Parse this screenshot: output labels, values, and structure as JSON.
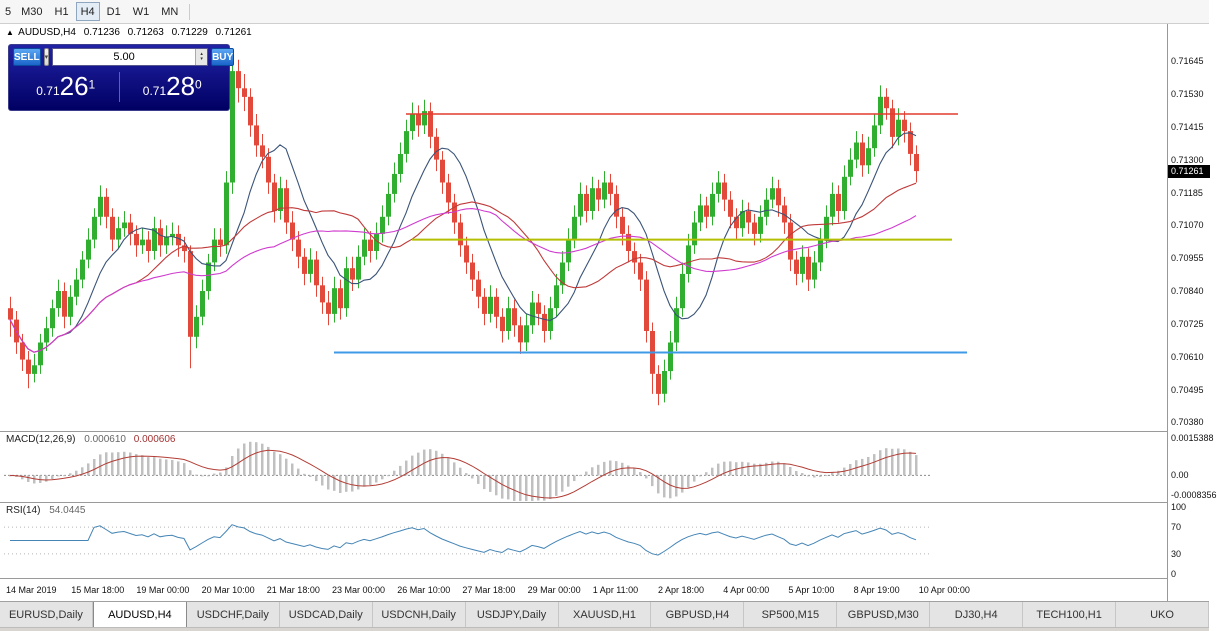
{
  "toolbar": {
    "timeframes": [
      "5",
      "M30",
      "H1",
      "H4",
      "D1",
      "W1",
      "MN"
    ],
    "active": "H4"
  },
  "chart_header": {
    "symbol": "AUDUSD,H4",
    "open": "0.71236",
    "high": "0.71263",
    "low": "0.71229",
    "close": "0.71261"
  },
  "trade_panel": {
    "sell_label": "SELL",
    "buy_label": "BUY",
    "volume": "5.00",
    "sell_price_small": "0.71",
    "sell_price_big": "26",
    "sell_price_sup": "1",
    "buy_price_small": "0.71",
    "buy_price_big": "28",
    "buy_price_sup": "0"
  },
  "price_axis": {
    "ticks": [
      "0.71645",
      "0.71530",
      "0.71415",
      "0.71300",
      "0.71185",
      "0.71070",
      "0.70955",
      "0.70840",
      "0.70725",
      "0.70610",
      "0.70495",
      "0.70380"
    ],
    "current_price": "0.71261"
  },
  "indicators": {
    "macd": {
      "label": "MACD(12,26,9)",
      "value_main": "0.000610",
      "value_signal": "0.000606",
      "axis": [
        "0.0015388",
        "0.00",
        "-0.0008356"
      ],
      "fast": 12,
      "slow": 26,
      "signal": 9
    },
    "rsi": {
      "label": "RSI(14)",
      "value": "54.0445",
      "axis": [
        "100",
        "70",
        "30",
        "0"
      ],
      "period": 14,
      "levels": [
        70,
        30
      ]
    }
  },
  "tabs": {
    "active": "AUDUSD,H4",
    "items": [
      "EURUSD,Daily",
      "AUDUSD,H4",
      "USDCHF,Daily",
      "USDCAD,Daily",
      "USDCNH,Daily",
      "USDJPY,Daily",
      "XAUUSD,H1",
      "GBPUSD,H4",
      "SP500,M15",
      "GBPUSD,M30",
      "DJ30,H4",
      "TECH100,H1",
      "UKO"
    ]
  },
  "chart_data": {
    "type": "candlestick",
    "title": "AUDUSD,H4",
    "ylim": [
      0.7035,
      0.71775
    ],
    "x_labels": [
      "14 Mar 2019",
      "15 Mar 18:00",
      "19 Mar 00:00",
      "20 Mar 10:00",
      "21 Mar 18:00",
      "23 Mar 00:00",
      "26 Mar 10:00",
      "27 Mar 18:00",
      "29 Mar 00:00",
      "1 Apr 11:00",
      "2 Apr 18:00",
      "4 Apr 00:00",
      "5 Apr 10:00",
      "8 Apr 19:00",
      "10 Apr 00:00"
    ],
    "colors": {
      "up": "#2fae2f",
      "down": "#e2493b",
      "ma_fast": "#3a5378",
      "ma_mid": "#c03a3a",
      "ma_slow": "#cf3ccf",
      "macd_hist": "#c0c0c0",
      "macd_signal": "#b23d35",
      "rsi": "#4585b5",
      "hline_red": "#e23b2e",
      "hline_yellow": "#b3bf00",
      "hline_blue": "#3e9ae6"
    },
    "moving_averages": [
      {
        "period": 10,
        "color_key": "ma_fast"
      },
      {
        "period": 22,
        "color_key": "ma_mid"
      },
      {
        "period": 45,
        "color_key": "ma_slow"
      }
    ],
    "hlines": [
      {
        "price": 0.7146,
        "color_key": "hline_red",
        "from_bar": 66,
        "to_bar": 158,
        "width": 1.5
      },
      {
        "price": 0.7102,
        "color_key": "hline_yellow",
        "from_bar": 67,
        "to_bar": 157,
        "width": 2
      },
      {
        "price": 0.70625,
        "color_key": "hline_blue",
        "from_bar": 54,
        "to_bar": 159.5,
        "width": 2
      }
    ],
    "candles": [
      [
        0.7078,
        0.7082,
        0.7068,
        0.7074
      ],
      [
        0.7074,
        0.7077,
        0.7062,
        0.7066
      ],
      [
        0.7066,
        0.7069,
        0.7056,
        0.706
      ],
      [
        0.706,
        0.7063,
        0.705,
        0.7055
      ],
      [
        0.7055,
        0.7062,
        0.7052,
        0.7058
      ],
      [
        0.7058,
        0.7069,
        0.7055,
        0.7066
      ],
      [
        0.7066,
        0.7075,
        0.7063,
        0.7071
      ],
      [
        0.7071,
        0.7081,
        0.7068,
        0.7078
      ],
      [
        0.7078,
        0.7088,
        0.7075,
        0.7084
      ],
      [
        0.7084,
        0.7087,
        0.7071,
        0.7075
      ],
      [
        0.7075,
        0.7086,
        0.7072,
        0.7082
      ],
      [
        0.7082,
        0.7092,
        0.7079,
        0.7088
      ],
      [
        0.7088,
        0.7098,
        0.7085,
        0.7095
      ],
      [
        0.7095,
        0.7106,
        0.7092,
        0.7102
      ],
      [
        0.7102,
        0.7113,
        0.7099,
        0.711
      ],
      [
        0.711,
        0.7121,
        0.7107,
        0.7117
      ],
      [
        0.7117,
        0.712,
        0.7106,
        0.711
      ],
      [
        0.711,
        0.7113,
        0.7098,
        0.7102
      ],
      [
        0.7102,
        0.711,
        0.7099,
        0.7106
      ],
      [
        0.7106,
        0.7112,
        0.7103,
        0.7108
      ],
      [
        0.7108,
        0.7111,
        0.71,
        0.7104
      ],
      [
        0.7104,
        0.7107,
        0.7096,
        0.71
      ],
      [
        0.71,
        0.7106,
        0.7097,
        0.7102
      ],
      [
        0.7102,
        0.7105,
        0.7094,
        0.7098
      ],
      [
        0.7098,
        0.711,
        0.7095,
        0.7106
      ],
      [
        0.7106,
        0.7109,
        0.7096,
        0.71
      ],
      [
        0.71,
        0.7107,
        0.7097,
        0.7103
      ],
      [
        0.7103,
        0.7108,
        0.71,
        0.7104
      ],
      [
        0.7104,
        0.7107,
        0.7096,
        0.71
      ],
      [
        0.71,
        0.7103,
        0.7094,
        0.7098
      ],
      [
        0.7098,
        0.71,
        0.7057,
        0.7068
      ],
      [
        0.7068,
        0.7079,
        0.7064,
        0.7075
      ],
      [
        0.7075,
        0.7088,
        0.7072,
        0.7084
      ],
      [
        0.7084,
        0.7097,
        0.7081,
        0.7094
      ],
      [
        0.7094,
        0.7106,
        0.7091,
        0.7102
      ],
      [
        0.7102,
        0.7106,
        0.7096,
        0.71
      ],
      [
        0.71,
        0.7126,
        0.7097,
        0.7122
      ],
      [
        0.7122,
        0.7168,
        0.7118,
        0.7161
      ],
      [
        0.7161,
        0.7165,
        0.715,
        0.7155
      ],
      [
        0.7155,
        0.716,
        0.7147,
        0.7152
      ],
      [
        0.7152,
        0.7155,
        0.7138,
        0.7142
      ],
      [
        0.7142,
        0.7146,
        0.7131,
        0.7135
      ],
      [
        0.7135,
        0.7139,
        0.7127,
        0.7131
      ],
      [
        0.7131,
        0.7134,
        0.7118,
        0.7122
      ],
      [
        0.7122,
        0.7125,
        0.7108,
        0.7112
      ],
      [
        0.7112,
        0.7124,
        0.7109,
        0.712
      ],
      [
        0.712,
        0.7123,
        0.7104,
        0.7108
      ],
      [
        0.7108,
        0.7112,
        0.7098,
        0.7102
      ],
      [
        0.7102,
        0.7105,
        0.7092,
        0.7096
      ],
      [
        0.7096,
        0.7099,
        0.7086,
        0.709
      ],
      [
        0.709,
        0.7099,
        0.7087,
        0.7095
      ],
      [
        0.7095,
        0.7098,
        0.7082,
        0.7086
      ],
      [
        0.7086,
        0.7089,
        0.7076,
        0.708
      ],
      [
        0.708,
        0.7084,
        0.7072,
        0.7076
      ],
      [
        0.7076,
        0.7089,
        0.7073,
        0.7085
      ],
      [
        0.7085,
        0.7088,
        0.7074,
        0.7078
      ],
      [
        0.7078,
        0.7096,
        0.7075,
        0.7092
      ],
      [
        0.7092,
        0.7096,
        0.7084,
        0.7088
      ],
      [
        0.7088,
        0.71,
        0.7085,
        0.7096
      ],
      [
        0.7096,
        0.7106,
        0.7093,
        0.7102
      ],
      [
        0.7102,
        0.7105,
        0.7094,
        0.7098
      ],
      [
        0.7098,
        0.7108,
        0.7095,
        0.7104
      ],
      [
        0.7104,
        0.7114,
        0.7101,
        0.711
      ],
      [
        0.711,
        0.7122,
        0.7107,
        0.7118
      ],
      [
        0.7118,
        0.7129,
        0.7115,
        0.7125
      ],
      [
        0.7125,
        0.7136,
        0.7122,
        0.7132
      ],
      [
        0.7132,
        0.7144,
        0.7129,
        0.714
      ],
      [
        0.714,
        0.715,
        0.7137,
        0.7146
      ],
      [
        0.7146,
        0.7149,
        0.7138,
        0.7142
      ],
      [
        0.7142,
        0.7151,
        0.7139,
        0.7147
      ],
      [
        0.7147,
        0.715,
        0.7134,
        0.7138
      ],
      [
        0.7138,
        0.7141,
        0.7126,
        0.713
      ],
      [
        0.713,
        0.7133,
        0.7118,
        0.7122
      ],
      [
        0.7122,
        0.7125,
        0.7111,
        0.7115
      ],
      [
        0.7115,
        0.7118,
        0.7104,
        0.7108
      ],
      [
        0.7108,
        0.7111,
        0.7096,
        0.71
      ],
      [
        0.71,
        0.7103,
        0.709,
        0.7094
      ],
      [
        0.7094,
        0.7097,
        0.7084,
        0.7088
      ],
      [
        0.7088,
        0.7091,
        0.7078,
        0.7082
      ],
      [
        0.7082,
        0.7085,
        0.7072,
        0.7076
      ],
      [
        0.7076,
        0.7086,
        0.7073,
        0.7082
      ],
      [
        0.7082,
        0.7085,
        0.7071,
        0.7075
      ],
      [
        0.7075,
        0.7078,
        0.7066,
        0.707
      ],
      [
        0.707,
        0.7082,
        0.7067,
        0.7078
      ],
      [
        0.7078,
        0.7081,
        0.7068,
        0.7072
      ],
      [
        0.7072,
        0.7075,
        0.7062,
        0.7066
      ],
      [
        0.7066,
        0.7076,
        0.7063,
        0.7072
      ],
      [
        0.7072,
        0.7084,
        0.7069,
        0.708
      ],
      [
        0.708,
        0.7083,
        0.7072,
        0.7076
      ],
      [
        0.7076,
        0.7079,
        0.7066,
        0.707
      ],
      [
        0.707,
        0.7082,
        0.7067,
        0.7078
      ],
      [
        0.7078,
        0.709,
        0.7075,
        0.7086
      ],
      [
        0.7086,
        0.7098,
        0.7083,
        0.7094
      ],
      [
        0.7094,
        0.7106,
        0.7091,
        0.7102
      ],
      [
        0.7102,
        0.7114,
        0.7099,
        0.711
      ],
      [
        0.711,
        0.7122,
        0.7107,
        0.7118
      ],
      [
        0.7118,
        0.7121,
        0.7108,
        0.7112
      ],
      [
        0.7112,
        0.7124,
        0.7109,
        0.712
      ],
      [
        0.712,
        0.7123,
        0.7112,
        0.7116
      ],
      [
        0.7116,
        0.7126,
        0.7113,
        0.7122
      ],
      [
        0.7122,
        0.7125,
        0.7114,
        0.7118
      ],
      [
        0.7118,
        0.7121,
        0.7106,
        0.711
      ],
      [
        0.711,
        0.7113,
        0.71,
        0.7104
      ],
      [
        0.7104,
        0.7107,
        0.7094,
        0.7098
      ],
      [
        0.7098,
        0.7101,
        0.709,
        0.7094
      ],
      [
        0.7094,
        0.7097,
        0.7084,
        0.7088
      ],
      [
        0.7088,
        0.7091,
        0.7066,
        0.707
      ],
      [
        0.707,
        0.7073,
        0.7048,
        0.7055
      ],
      [
        0.7055,
        0.7058,
        0.7044,
        0.7048
      ],
      [
        0.7048,
        0.706,
        0.7045,
        0.7056
      ],
      [
        0.7056,
        0.707,
        0.7053,
        0.7066
      ],
      [
        0.7066,
        0.7082,
        0.7063,
        0.7078
      ],
      [
        0.7078,
        0.7094,
        0.7075,
        0.709
      ],
      [
        0.709,
        0.7104,
        0.7087,
        0.71
      ],
      [
        0.71,
        0.7112,
        0.7097,
        0.7108
      ],
      [
        0.7108,
        0.7118,
        0.7105,
        0.7114
      ],
      [
        0.7114,
        0.7117,
        0.7106,
        0.711
      ],
      [
        0.711,
        0.7122,
        0.7107,
        0.7118
      ],
      [
        0.7118,
        0.7126,
        0.7115,
        0.7122
      ],
      [
        0.7122,
        0.7125,
        0.7112,
        0.7116
      ],
      [
        0.7116,
        0.7119,
        0.7106,
        0.711
      ],
      [
        0.711,
        0.7113,
        0.7102,
        0.7106
      ],
      [
        0.7106,
        0.7116,
        0.7103,
        0.7112
      ],
      [
        0.7112,
        0.7115,
        0.7104,
        0.7108
      ],
      [
        0.7108,
        0.7111,
        0.71,
        0.7104
      ],
      [
        0.7104,
        0.7114,
        0.7101,
        0.711
      ],
      [
        0.711,
        0.712,
        0.7107,
        0.7116
      ],
      [
        0.7116,
        0.7124,
        0.7113,
        0.712
      ],
      [
        0.712,
        0.7123,
        0.711,
        0.7114
      ],
      [
        0.7114,
        0.7117,
        0.7104,
        0.7108
      ],
      [
        0.7108,
        0.7111,
        0.7091,
        0.7095
      ],
      [
        0.7095,
        0.7098,
        0.7086,
        0.709
      ],
      [
        0.709,
        0.71,
        0.7087,
        0.7096
      ],
      [
        0.7096,
        0.7099,
        0.7084,
        0.7088
      ],
      [
        0.7088,
        0.7098,
        0.7085,
        0.7094
      ],
      [
        0.7094,
        0.7106,
        0.7091,
        0.7102
      ],
      [
        0.7102,
        0.7114,
        0.7099,
        0.711
      ],
      [
        0.711,
        0.7122,
        0.7107,
        0.7118
      ],
      [
        0.7118,
        0.7121,
        0.7108,
        0.7112
      ],
      [
        0.7112,
        0.7128,
        0.7109,
        0.7124
      ],
      [
        0.7124,
        0.7134,
        0.7121,
        0.713
      ],
      [
        0.713,
        0.714,
        0.7127,
        0.7136
      ],
      [
        0.7136,
        0.7139,
        0.7124,
        0.7128
      ],
      [
        0.7128,
        0.7138,
        0.7125,
        0.7134
      ],
      [
        0.7134,
        0.7146,
        0.7131,
        0.7142
      ],
      [
        0.7142,
        0.7156,
        0.7139,
        0.7152
      ],
      [
        0.7152,
        0.7155,
        0.7144,
        0.7148
      ],
      [
        0.7148,
        0.7151,
        0.7134,
        0.7138
      ],
      [
        0.7138,
        0.7148,
        0.7135,
        0.7144
      ],
      [
        0.7144,
        0.7147,
        0.7136,
        0.714
      ],
      [
        0.714,
        0.7143,
        0.7128,
        0.7132
      ],
      [
        0.7132,
        0.7135,
        0.7122,
        0.7126
      ]
    ]
  }
}
